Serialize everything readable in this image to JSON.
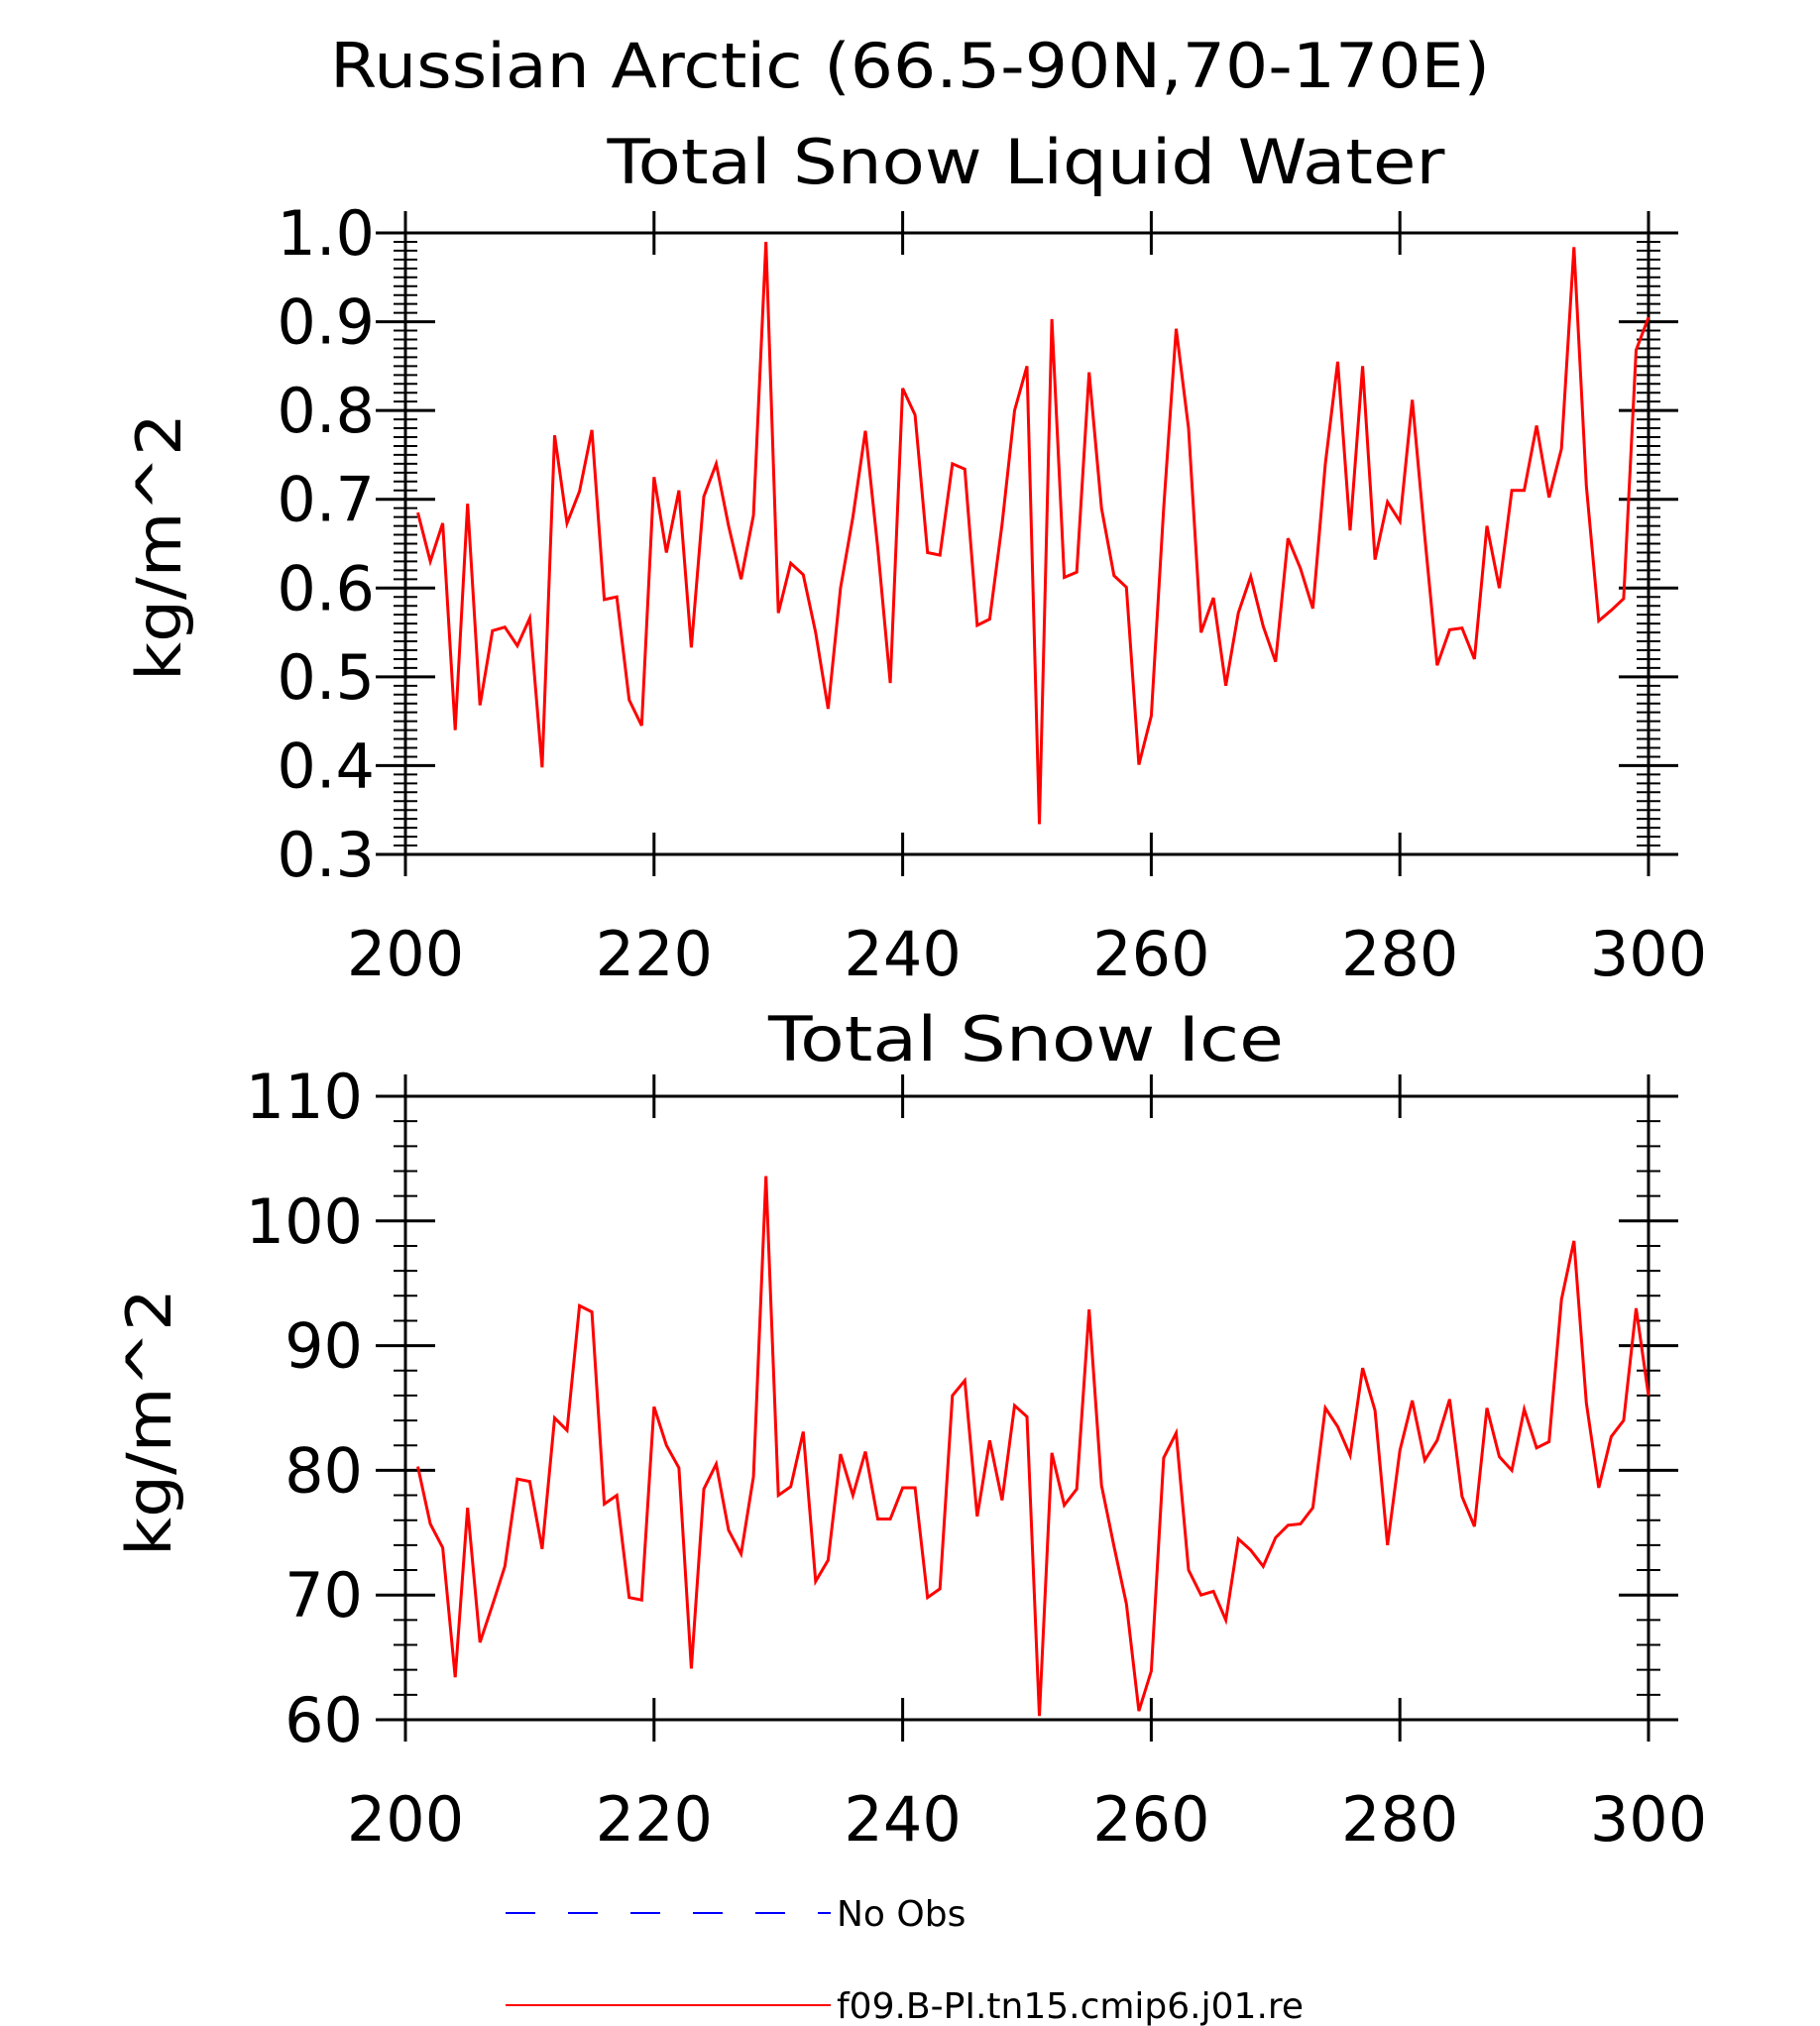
{
  "figure": {
    "title_line1": "Russian Arctic (66.5-90N,70-170E)"
  },
  "chart_data": [
    {
      "type": "line",
      "title": "Total Snow Liquid Water",
      "xlabel": "",
      "ylabel": "kg/m^2",
      "xlim": [
        200,
        300
      ],
      "ylim": [
        0.3,
        1.0
      ],
      "xticks": [
        "200",
        "220",
        "240",
        "260",
        "280",
        "300"
      ],
      "yticks": [
        "0.3",
        "0.4",
        "0.5",
        "0.6",
        "0.7",
        "0.8",
        "0.9",
        "1.0"
      ],
      "x_start": 201,
      "series": [
        {
          "name": "f09.B-PI.tn15.cmip6.j01.re",
          "color": "#ff0000",
          "values": [
            0.685,
            0.63,
            0.673,
            0.44,
            0.695,
            0.468,
            0.552,
            0.556,
            0.535,
            0.566,
            0.398,
            0.772,
            0.673,
            0.709,
            0.778,
            0.587,
            0.59,
            0.474,
            0.445,
            0.725,
            0.64,
            0.71,
            0.533,
            0.703,
            0.74,
            0.67,
            0.61,
            0.682,
            0.99,
            0.572,
            0.628,
            0.615,
            0.55,
            0.464,
            0.6,
            0.68,
            0.777,
            0.645,
            0.493,
            0.825,
            0.795,
            0.64,
            0.637,
            0.74,
            0.734,
            0.558,
            0.565,
            0.672,
            0.8,
            0.85,
            0.334,
            0.903,
            0.612,
            0.618,
            0.843,
            0.69,
            0.614,
            0.601,
            0.401,
            0.456,
            0.69,
            0.892,
            0.78,
            0.55,
            0.589,
            0.49,
            0.572,
            0.613,
            0.557,
            0.517,
            0.656,
            0.622,
            0.577,
            0.74,
            0.855,
            0.665,
            0.85,
            0.632,
            0.697,
            0.675,
            0.812,
            0.658,
            0.513,
            0.553,
            0.555,
            0.52,
            0.67,
            0.6,
            0.71,
            0.71,
            0.783,
            0.702,
            0.757,
            0.984,
            0.715,
            0.563,
            0.575,
            0.588,
            0.868,
            0.905
          ]
        }
      ]
    },
    {
      "type": "line",
      "title": "Total Snow Ice",
      "xlabel": "",
      "ylabel": "kg/m^2",
      "xlim": [
        200,
        300
      ],
      "ylim": [
        60,
        110
      ],
      "xticks": [
        "200",
        "220",
        "240",
        "260",
        "280",
        "300"
      ],
      "yticks": [
        "60",
        "70",
        "80",
        "90",
        "100",
        "110"
      ],
      "x_start": 201,
      "series": [
        {
          "name": "f09.B-PI.tn15.cmip6.j01.re",
          "color": "#ff0000",
          "values": [
            80.3,
            75.7,
            73.8,
            63.4,
            77.0,
            66.2,
            69.2,
            72.3,
            79.3,
            79.1,
            73.7,
            84.2,
            83.2,
            93.2,
            92.7,
            77.3,
            78.0,
            69.8,
            69.6,
            85.1,
            82.0,
            80.2,
            64.1,
            78.5,
            80.5,
            75.2,
            73.3,
            79.5,
            103.6,
            78.0,
            78.7,
            83.1,
            71.1,
            72.8,
            81.3,
            78.0,
            81.5,
            76.1,
            76.1,
            78.6,
            78.6,
            69.8,
            70.5,
            86.0,
            87.2,
            76.3,
            82.4,
            77.6,
            85.2,
            84.3,
            60.3,
            81.4,
            77.2,
            78.5,
            92.9,
            78.8,
            73.9,
            69.3,
            60.7,
            63.9,
            81.0,
            83.0,
            72.0,
            70.0,
            70.3,
            68.0,
            74.5,
            73.6,
            72.3,
            74.6,
            75.6,
            75.7,
            77.0,
            85.0,
            83.5,
            81.2,
            88.2,
            84.8,
            74.0,
            81.6,
            85.6,
            80.8,
            82.4,
            85.7,
            77.9,
            75.5,
            85.0,
            81.1,
            80.0,
            84.9,
            81.8,
            82.3,
            93.7,
            98.4,
            85.4,
            78.6,
            82.7,
            84.0,
            93.0,
            86.0
          ]
        }
      ]
    }
  ],
  "legend": [
    {
      "label": "No Obs",
      "color": "#0000ff",
      "dash": true
    },
    {
      "label": "f09.B-PI.tn15.cmip6.j01.re",
      "color": "#ff0000",
      "dash": false
    }
  ]
}
